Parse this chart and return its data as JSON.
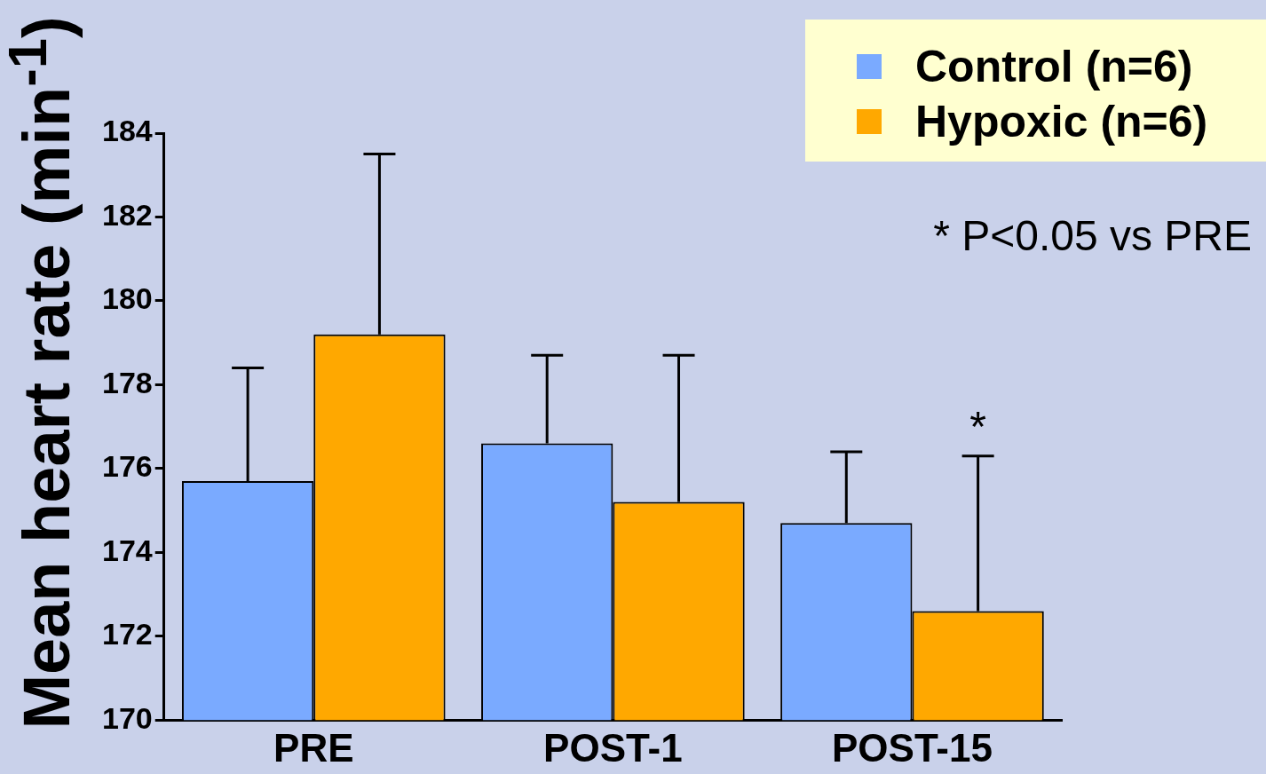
{
  "chart_data": {
    "type": "bar",
    "ylabel": "Mean heart rate (min$^{-1}$)",
    "categories": [
      "PRE",
      "POST-1",
      "POST-15"
    ],
    "series": [
      {
        "name": "Control (n=6)",
        "color": "#7aaaff",
        "values": [
          175.7,
          176.6,
          174.7
        ],
        "errors": [
          [
            175.7,
            178.4
          ],
          [
            176.6,
            178.7
          ],
          [
            174.7,
            176.4
          ]
        ]
      },
      {
        "name": "Hypoxic (n=6)",
        "color": "#ffa800",
        "values": [
          179.2,
          175.2,
          172.6
        ],
        "errors": [
          [
            179.2,
            183.5
          ],
          [
            175.2,
            178.7
          ],
          [
            172.6,
            176.3
          ]
        ]
      }
    ],
    "ylim": [
      170,
      184
    ],
    "yticks": [
      170,
      172,
      174,
      176,
      178,
      180,
      182,
      184
    ],
    "grid": false,
    "legend": "top right",
    "annotations": [
      "* P<0.05 vs PRE",
      "*"
    ]
  }
}
